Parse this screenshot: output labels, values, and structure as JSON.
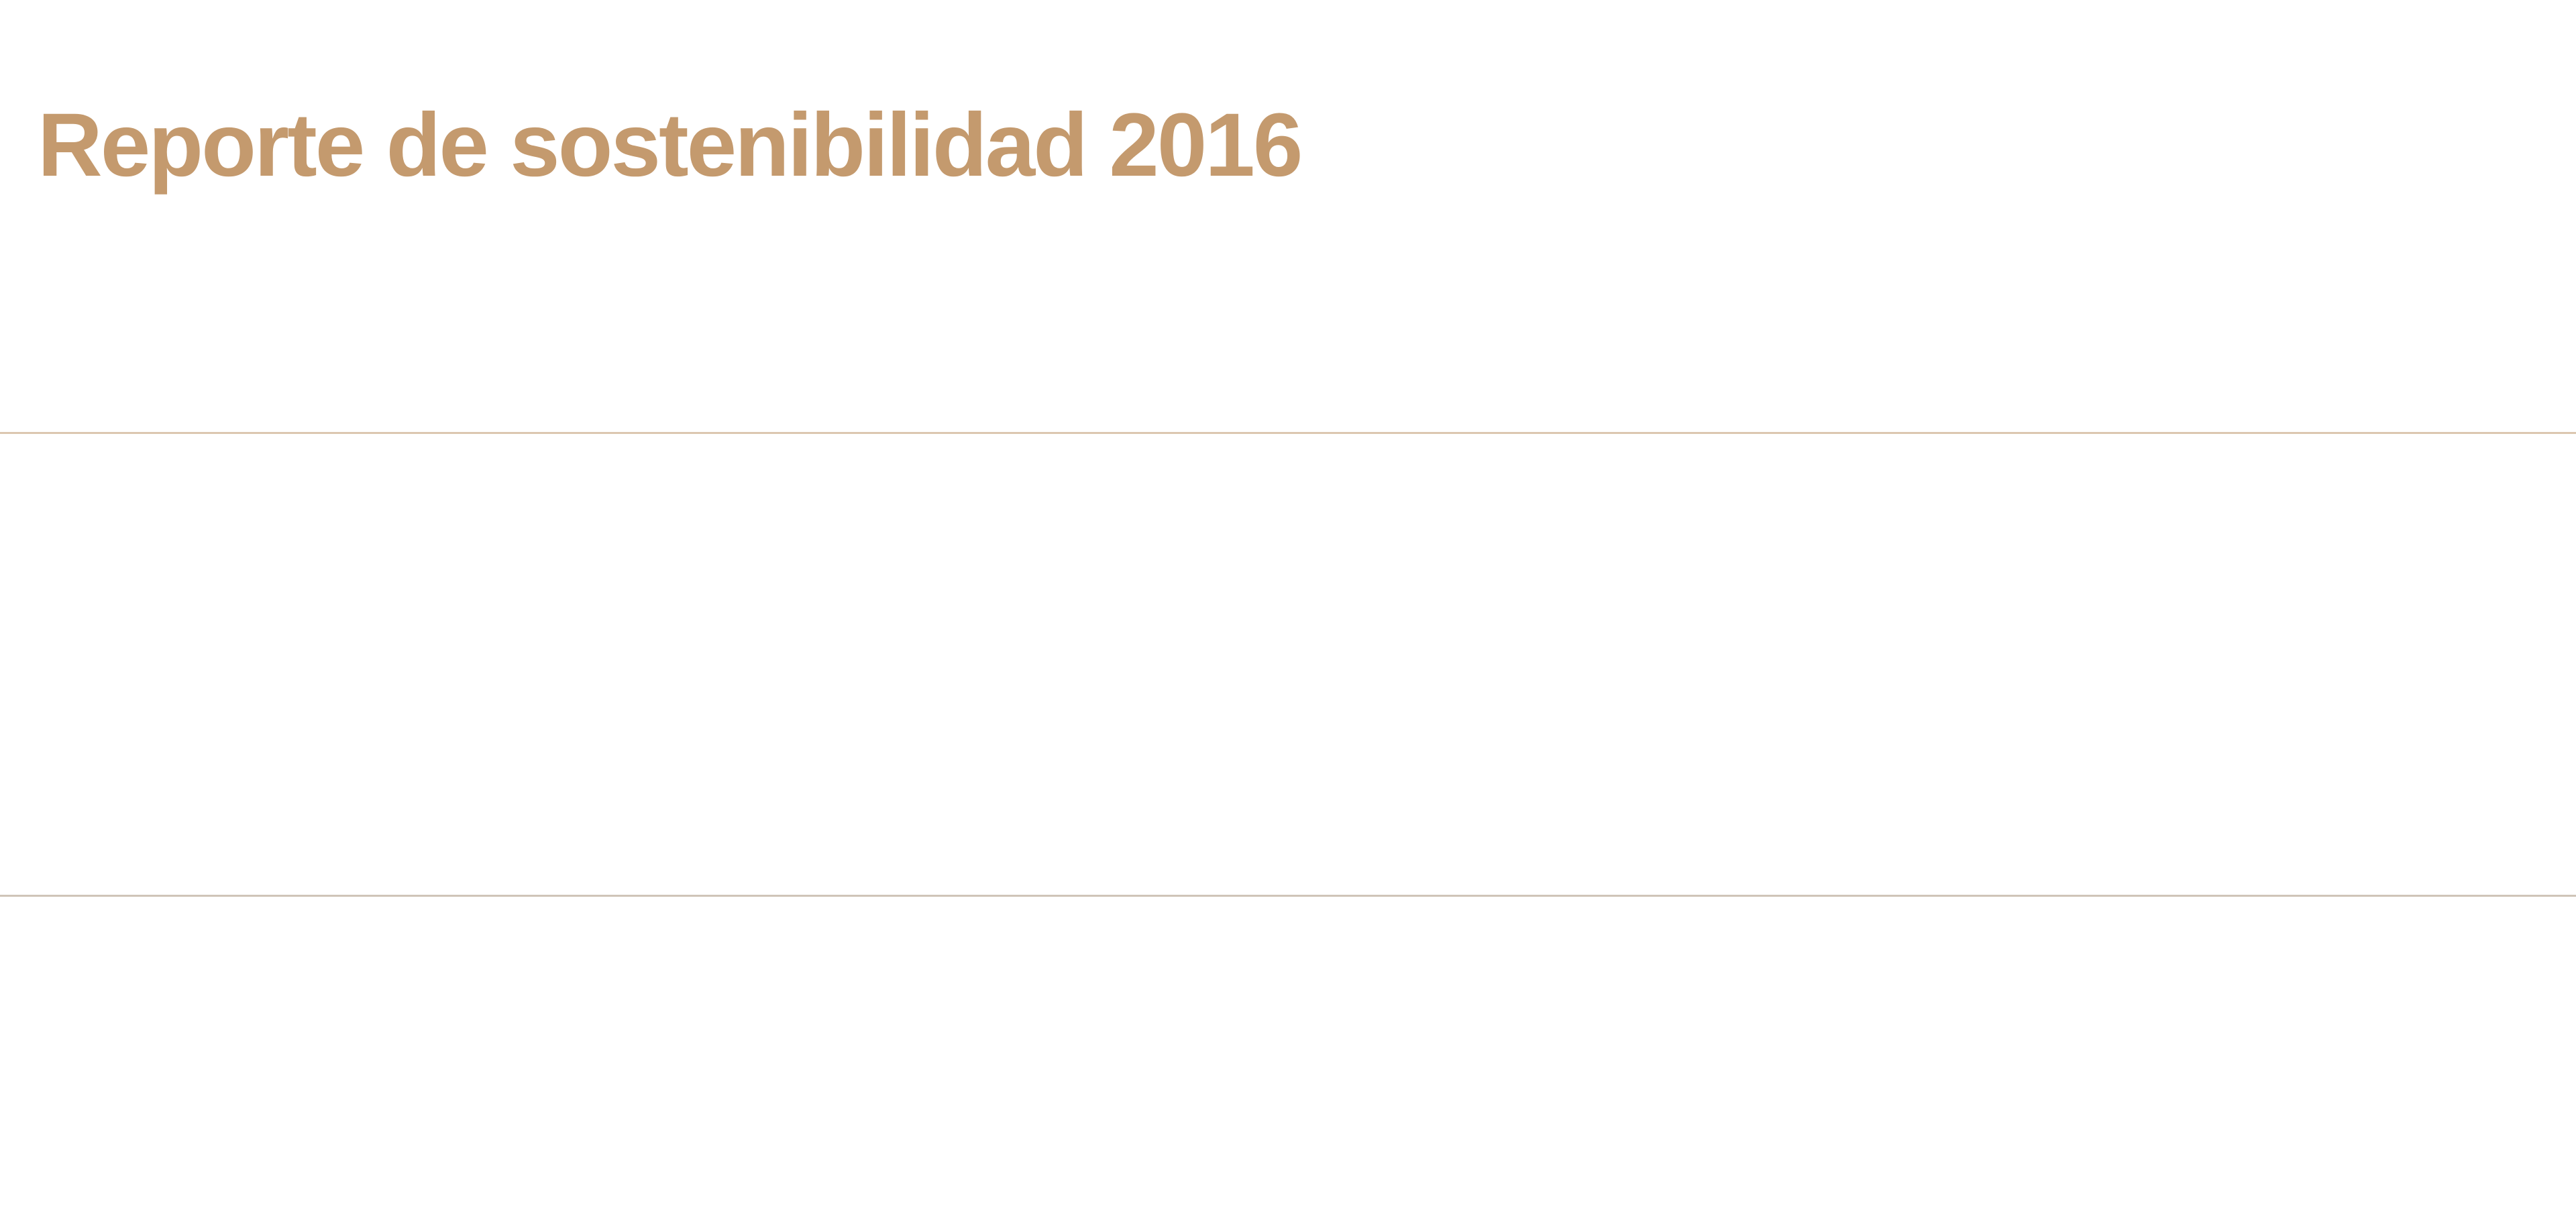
{
  "header": {
    "title": "Reporte de sostenibilidad 2016"
  },
  "colors": {
    "accent": "#c49a6e",
    "divider_top": "#dcc7b0",
    "divider_bottom": "#cfc4b8"
  }
}
